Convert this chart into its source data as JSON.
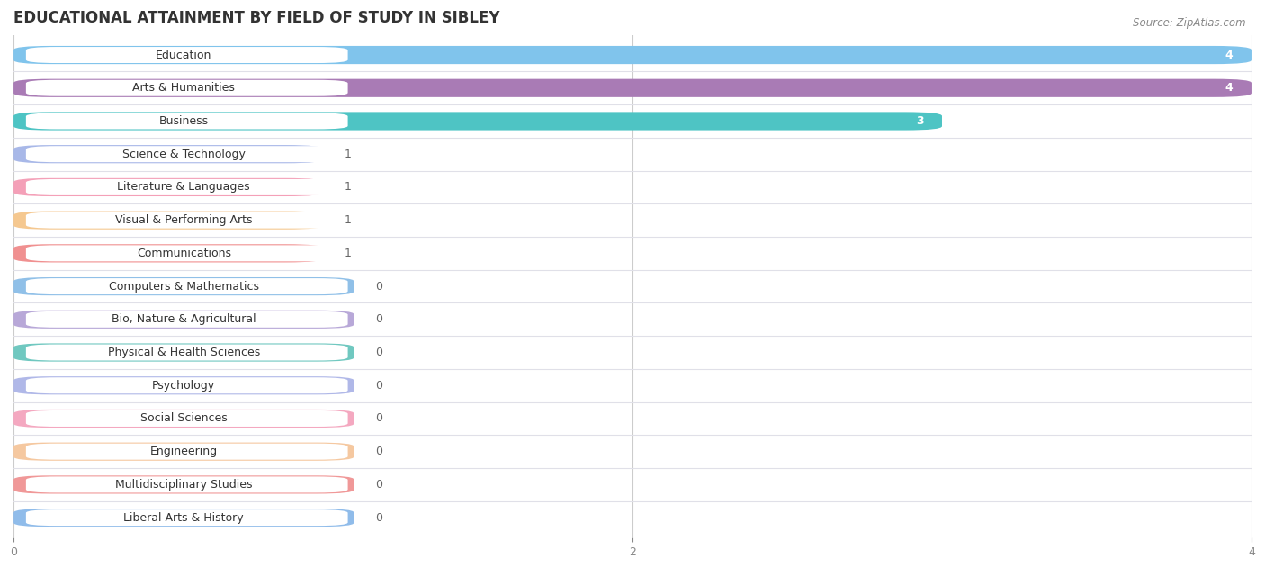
{
  "title": "EDUCATIONAL ATTAINMENT BY FIELD OF STUDY IN SIBLEY",
  "source": "Source: ZipAtlas.com",
  "categories": [
    "Education",
    "Arts & Humanities",
    "Business",
    "Science & Technology",
    "Literature & Languages",
    "Visual & Performing Arts",
    "Communications",
    "Computers & Mathematics",
    "Bio, Nature & Agricultural",
    "Physical & Health Sciences",
    "Psychology",
    "Social Sciences",
    "Engineering",
    "Multidisciplinary Studies",
    "Liberal Arts & History"
  ],
  "values": [
    4,
    4,
    3,
    1,
    1,
    1,
    1,
    0,
    0,
    0,
    0,
    0,
    0,
    0,
    0
  ],
  "bar_colors": [
    "#80C4EC",
    "#A97BB5",
    "#4EC4C4",
    "#A8B8E8",
    "#F4A0B8",
    "#F5C890",
    "#F09090",
    "#90C0E8",
    "#B8A8D8",
    "#70C8C0",
    "#B0B8E8",
    "#F4A8C0",
    "#F5C8A0",
    "#F09898",
    "#90BCEA"
  ],
  "label_pill_color": "#FFFFFF",
  "row_bg_color": "#FFFFFF",
  "separator_color": "#E0E0E8",
  "xlim": [
    0,
    4
  ],
  "xtick_positions": [
    0,
    2,
    4
  ],
  "title_fontsize": 12,
  "label_fontsize": 9,
  "value_fontsize": 9,
  "source_fontsize": 8.5,
  "background_color": "#FFFFFF",
  "grid_color": "#CCCCCC",
  "value_color_inside": "#FFFFFF",
  "value_color_outside": "#666666",
  "label_color": "#333333",
  "title_color": "#333333"
}
